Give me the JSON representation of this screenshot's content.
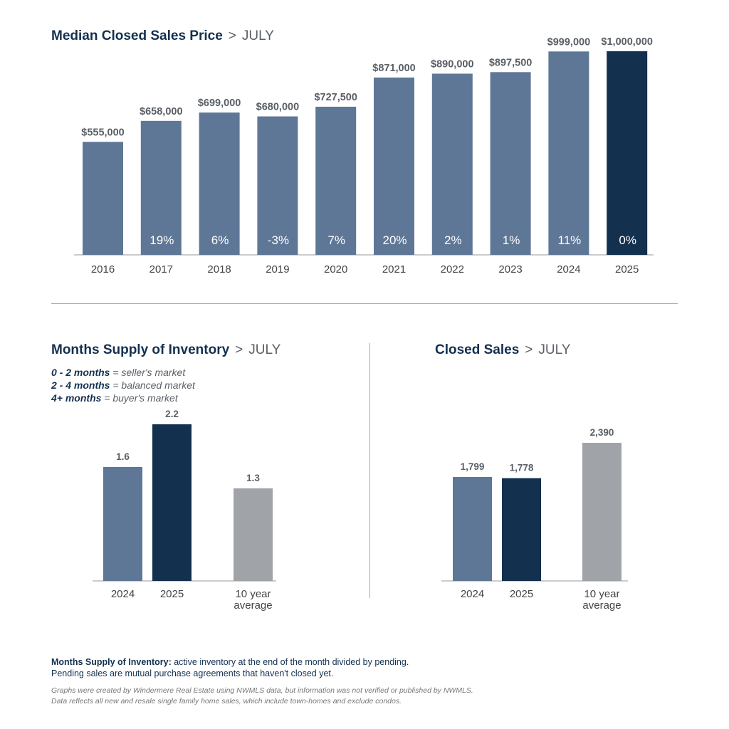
{
  "colors": {
    "bar": "#5f7796",
    "highlight": "#13304f",
    "average": "#a0a4a8",
    "axis": "#999999"
  },
  "price_chart": {
    "title": "Median Closed Sales Price",
    "separator": ">",
    "month": "JULY"
  },
  "inventory_chart": {
    "title": "Months Supply of Inventory",
    "separator": ">",
    "month": "JULY",
    "legend": [
      {
        "range": "0 - 2 months",
        "desc": "= seller's market"
      },
      {
        "range": "2 - 4 months",
        "desc": "= balanced market"
      },
      {
        "range": "4+ months",
        "desc": "= buyer's market"
      }
    ]
  },
  "sales_chart": {
    "title": "Closed Sales",
    "separator": ">",
    "month": "JULY"
  },
  "chart_data": [
    {
      "type": "bar",
      "title": "Median Closed Sales Price > JULY",
      "categories": [
        "2016",
        "2017",
        "2018",
        "2019",
        "2020",
        "2021",
        "2022",
        "2023",
        "2024",
        "2025"
      ],
      "values": [
        555000,
        658000,
        699000,
        680000,
        727500,
        871000,
        890000,
        897500,
        999000,
        1000000
      ],
      "value_labels": [
        "$555,000",
        "$658,000",
        "$699,000",
        "$680,000",
        "$727,500",
        "$871,000",
        "$890,000",
        "$897,500",
        "$999,000",
        "$1,000,000"
      ],
      "change_labels": [
        "",
        "19%",
        "6%",
        "-3%",
        "7%",
        "20%",
        "2%",
        "1%",
        "11%",
        "0%"
      ],
      "highlight_index": 9,
      "ylim": [
        0,
        1000000
      ]
    },
    {
      "type": "bar",
      "title": "Months Supply of Inventory > JULY",
      "categories": [
        "2024",
        "2025",
        "10 year average"
      ],
      "values": [
        1.6,
        2.2,
        1.3
      ],
      "value_labels": [
        "1.6",
        "2.2",
        "1.3"
      ],
      "bar_styles": [
        "bar",
        "highlight",
        "average"
      ],
      "ylim": [
        0,
        2.2
      ]
    },
    {
      "type": "bar",
      "title": "Closed Sales > JULY",
      "categories": [
        "2024",
        "2025",
        "10 year average"
      ],
      "values": [
        1799,
        1778,
        2390
      ],
      "value_labels": [
        "1,799",
        "1,778",
        "2,390"
      ],
      "bar_styles": [
        "bar",
        "highlight",
        "average"
      ],
      "ylim": [
        0,
        2390
      ]
    }
  ],
  "footnote": {
    "term": "Months Supply of Inventory:",
    "line1": " active inventory at the end of the month divided by pending.",
    "line2": "Pending sales are mutual purchase agreements that haven't closed yet."
  },
  "source": {
    "line1": "Graphs were created by Windermere Real Estate using NWMLS data, but information was not verified or published by NWMLS.",
    "line2": "Data reflects all new and resale single family home sales, which include town-homes and exclude condos."
  }
}
